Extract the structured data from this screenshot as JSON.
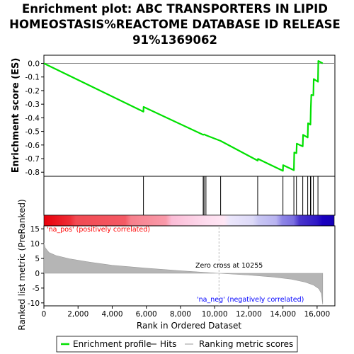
{
  "chart_data": {
    "type": "line",
    "title_lines": [
      "Enrichment plot: ABC TRANSPORTERS IN LIPID",
      "HOMEOSTASIS%REACTOME DATABASE ID RELEASE",
      "91%1369062"
    ],
    "ylabel_top": "Enrichment score (ES)",
    "ylabel_bottom": "Ranked list metric (PreRanked)",
    "xlabel": "Rank in Ordered Dataset",
    "xlim": [
      0,
      17000
    ],
    "x_ticks": [
      0,
      2000,
      4000,
      6000,
      8000,
      10000,
      12000,
      14000,
      16000
    ],
    "x_tick_labels": [
      "0",
      "2,000",
      "4,000",
      "6,000",
      "8,000",
      "10,000",
      "12,000",
      "14,000",
      "16,000"
    ],
    "es_ylim": [
      -0.83,
      0.06
    ],
    "es_ticks": [
      0.0,
      -0.1,
      -0.2,
      -0.3,
      -0.4,
      -0.5,
      -0.6,
      -0.7,
      -0.8
    ],
    "es_tick_labels": [
      "0.0",
      "-0.1",
      "-0.2",
      "-0.3",
      "-0.4",
      "-0.5",
      "-0.6",
      "-0.7",
      "-0.8"
    ],
    "metric_ylim": [
      -11,
      16
    ],
    "metric_ticks": [
      15,
      10,
      5,
      0,
      -5,
      -10
    ],
    "metric_tick_labels": [
      "15",
      "10",
      "5",
      "0",
      "-5",
      "-10"
    ],
    "enrichment_profile": {
      "name": "Enrichment profile",
      "color": "#00e000",
      "points": [
        [
          0,
          0.0
        ],
        [
          5830,
          -0.355
        ],
        [
          5840,
          -0.32
        ],
        [
          9330,
          -0.525
        ],
        [
          9380,
          -0.522
        ],
        [
          9490,
          -0.528
        ],
        [
          9530,
          -0.53
        ],
        [
          10350,
          -0.57
        ],
        [
          12520,
          -0.715
        ],
        [
          12540,
          -0.702
        ],
        [
          14000,
          -0.79
        ],
        [
          14010,
          -0.748
        ],
        [
          14640,
          -0.785
        ],
        [
          14660,
          -0.655
        ],
        [
          14790,
          -0.66
        ],
        [
          14810,
          -0.59
        ],
        [
          15160,
          -0.61
        ],
        [
          15180,
          -0.525
        ],
        [
          15450,
          -0.545
        ],
        [
          15470,
          -0.44
        ],
        [
          15610,
          -0.45
        ],
        [
          15630,
          -0.33
        ],
        [
          15660,
          -0.232
        ],
        [
          15780,
          -0.235
        ],
        [
          15800,
          -0.115
        ],
        [
          16050,
          -0.135
        ],
        [
          16070,
          0.018
        ],
        [
          16330,
          0.0
        ]
      ]
    },
    "hits": {
      "name": "Hits",
      "color": "#000000",
      "positions": [
        5830,
        9330,
        9380,
        9490,
        10350,
        12520,
        14000,
        14640,
        14790,
        15160,
        15450,
        15610,
        15630,
        15780,
        16050
      ]
    },
    "ranking_metric": {
      "name": "Ranking metric scores",
      "color": "#cccccc",
      "points": [
        [
          0,
          10.3
        ],
        [
          80,
          8.6
        ],
        [
          300,
          7.0
        ],
        [
          700,
          6.0
        ],
        [
          1500,
          4.9
        ],
        [
          2500,
          3.9
        ],
        [
          4000,
          2.7
        ],
        [
          6000,
          1.7
        ],
        [
          8000,
          0.85
        ],
        [
          10255,
          0.0
        ],
        [
          12000,
          -0.6
        ],
        [
          13500,
          -1.3
        ],
        [
          14500,
          -2.0
        ],
        [
          15300,
          -3.0
        ],
        [
          15800,
          -4.0
        ],
        [
          16100,
          -5.2
        ],
        [
          16250,
          -6.8
        ],
        [
          16330,
          -10.5
        ]
      ]
    },
    "zero_cross_label": "Zero cross at 10255",
    "zero_cross": 10255,
    "pos_label": "'na_pos' (positively correlated)",
    "neg_label": "'na_neg' (negatively correlated)",
    "pos_label_color": "#ff0000",
    "neg_label_color": "#0000ff",
    "legend": [
      "Enrichment profile",
      "Hits",
      "Ranking metric scores"
    ]
  }
}
